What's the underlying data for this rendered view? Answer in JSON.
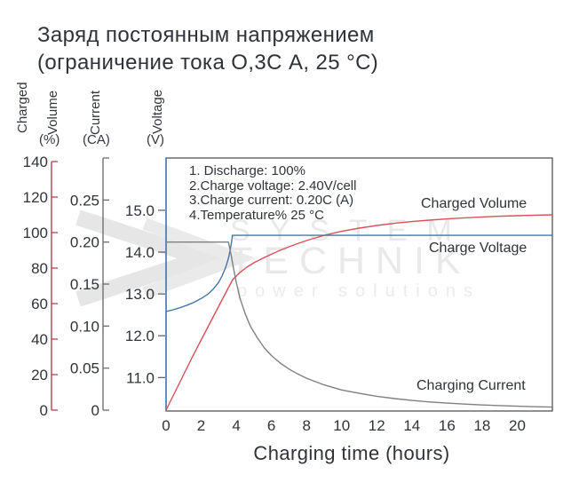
{
  "title": {
    "line1": "Заряд постоянным напряжением",
    "line2": "(ограничение тока О,3С А, 25 °С)"
  },
  "watermark": {
    "line1": "SYSTEM",
    "line2": "TECHNIK",
    "line3": "power solutions"
  },
  "axis_names": {
    "charged_line1": "Charged",
    "charged_line2": "Volume",
    "charged_unit": "(%)",
    "current_name": "Current",
    "current_unit": "(CA)",
    "voltage_name": "Voltage",
    "voltage_unit": "(V)"
  },
  "plot": {
    "annotations": [
      "1. Discharge: 100%",
      "2.Charge voltage: 2.40V/cell",
      "3.Charge current: 0.20C (A)",
      "4.Temperature% 25 °C"
    ],
    "series_labels": {
      "charged_volume": "Charged Volume",
      "charge_voltage": "Charge Voltage",
      "charging_current": "Charging Current"
    }
  },
  "x_axis": {
    "label": "Charging time (hours)"
  },
  "colors": {
    "text": "#2f3338",
    "border": "#43464a",
    "volume_axis": "#b2434c",
    "volume_curve": "#d9505a",
    "current_axis": "#6e6e6e",
    "current_curve": "#808080",
    "voltage_axis": "#4377ab",
    "voltage_curve": "#4377ab",
    "watermark": "#e9e9e9"
  },
  "chart_data": {
    "type": "line",
    "title": "Заряд постоянным напряжением (ограничение тока О,3С А, 25 °С)",
    "xlabel": "Charging time (hours)",
    "xlim": [
      0,
      22
    ],
    "x_ticks": [
      0,
      2,
      4,
      6,
      8,
      10,
      12,
      14,
      16,
      18,
      20
    ],
    "grid": false,
    "legend_position": "inline-right",
    "axes": [
      {
        "id": "charged_volume",
        "label": "Charged Volume (%)",
        "ylim": [
          -0.5,
          142
        ],
        "ticks": [
          0,
          20,
          40,
          60,
          80,
          100,
          120,
          140
        ],
        "decimals": 0,
        "color": "#b2434c"
      },
      {
        "id": "current",
        "label": "Current (CA)",
        "ylim": [
          -0.001,
          0.3
        ],
        "ticks": [
          0,
          0.05,
          0.1,
          0.15,
          0.2,
          0.25
        ],
        "decimals": 2,
        "color": "#6e6e6e"
      },
      {
        "id": "voltage",
        "label": "Voltage (V)",
        "ylim": [
          10.2,
          16.25
        ],
        "ticks": [
          11.0,
          12.0,
          13.0,
          14.0,
          15.0
        ],
        "decimals": 1,
        "color": "#4377ab"
      }
    ],
    "series": [
      {
        "name": "Charged Volume",
        "axis": "charged_volume",
        "color": "#d9505a",
        "points": [
          [
            0,
            0
          ],
          [
            0.5,
            10
          ],
          [
            1,
            20
          ],
          [
            1.5,
            30
          ],
          [
            2,
            39.5
          ],
          [
            2.5,
            49
          ],
          [
            3,
            58.5
          ],
          [
            3.5,
            68
          ],
          [
            3.8,
            73.5
          ],
          [
            4.2,
            77.5
          ],
          [
            4.6,
            80.5
          ],
          [
            5,
            83
          ],
          [
            5.5,
            85.5
          ],
          [
            6,
            87.8
          ],
          [
            6.5,
            90
          ],
          [
            7,
            92
          ],
          [
            7.5,
            93.8
          ],
          [
            8,
            95.5
          ],
          [
            8.5,
            97
          ],
          [
            9,
            98.4
          ],
          [
            9.5,
            99.6
          ],
          [
            10,
            100.7
          ],
          [
            11,
            102.5
          ],
          [
            12,
            104
          ],
          [
            13,
            105.2
          ],
          [
            14,
            106.2
          ],
          [
            15,
            107
          ],
          [
            16,
            107.7
          ],
          [
            17,
            108.3
          ],
          [
            18,
            108.8
          ],
          [
            19,
            109.2
          ],
          [
            20,
            109.5
          ],
          [
            21,
            109.8
          ],
          [
            22,
            110
          ]
        ]
      },
      {
        "name": "Charge Voltage",
        "axis": "voltage",
        "color": "#4377ab",
        "points": [
          [
            0,
            12.58
          ],
          [
            0.4,
            12.62
          ],
          [
            0.8,
            12.67
          ],
          [
            1.2,
            12.73
          ],
          [
            1.6,
            12.8
          ],
          [
            2.0,
            12.89
          ],
          [
            2.4,
            13.0
          ],
          [
            2.7,
            13.12
          ],
          [
            3.0,
            13.28
          ],
          [
            3.2,
            13.44
          ],
          [
            3.4,
            13.64
          ],
          [
            3.55,
            13.85
          ],
          [
            3.65,
            14.05
          ],
          [
            3.72,
            14.22
          ],
          [
            3.78,
            14.4
          ],
          [
            22,
            14.4
          ]
        ]
      },
      {
        "name": "Charging Current",
        "axis": "current",
        "color": "#808080",
        "points": [
          [
            0,
            0.2
          ],
          [
            3.55,
            0.2
          ],
          [
            3.7,
            0.185
          ],
          [
            3.85,
            0.168
          ],
          [
            4.0,
            0.152
          ],
          [
            4.2,
            0.134
          ],
          [
            4.5,
            0.115
          ],
          [
            4.8,
            0.1
          ],
          [
            5.2,
            0.086
          ],
          [
            5.6,
            0.074
          ],
          [
            6.0,
            0.065
          ],
          [
            6.5,
            0.056
          ],
          [
            7.0,
            0.049
          ],
          [
            7.5,
            0.043
          ],
          [
            8.0,
            0.038
          ],
          [
            9.0,
            0.03
          ],
          [
            10,
            0.024
          ],
          [
            11,
            0.02
          ],
          [
            12,
            0.0165
          ],
          [
            13,
            0.0138
          ],
          [
            14,
            0.0116
          ],
          [
            15,
            0.0098
          ],
          [
            16,
            0.0084
          ],
          [
            17,
            0.0072
          ],
          [
            18,
            0.0062
          ],
          [
            19,
            0.0054
          ],
          [
            20,
            0.0047
          ],
          [
            21,
            0.0041
          ],
          [
            22,
            0.0036
          ]
        ]
      }
    ]
  }
}
